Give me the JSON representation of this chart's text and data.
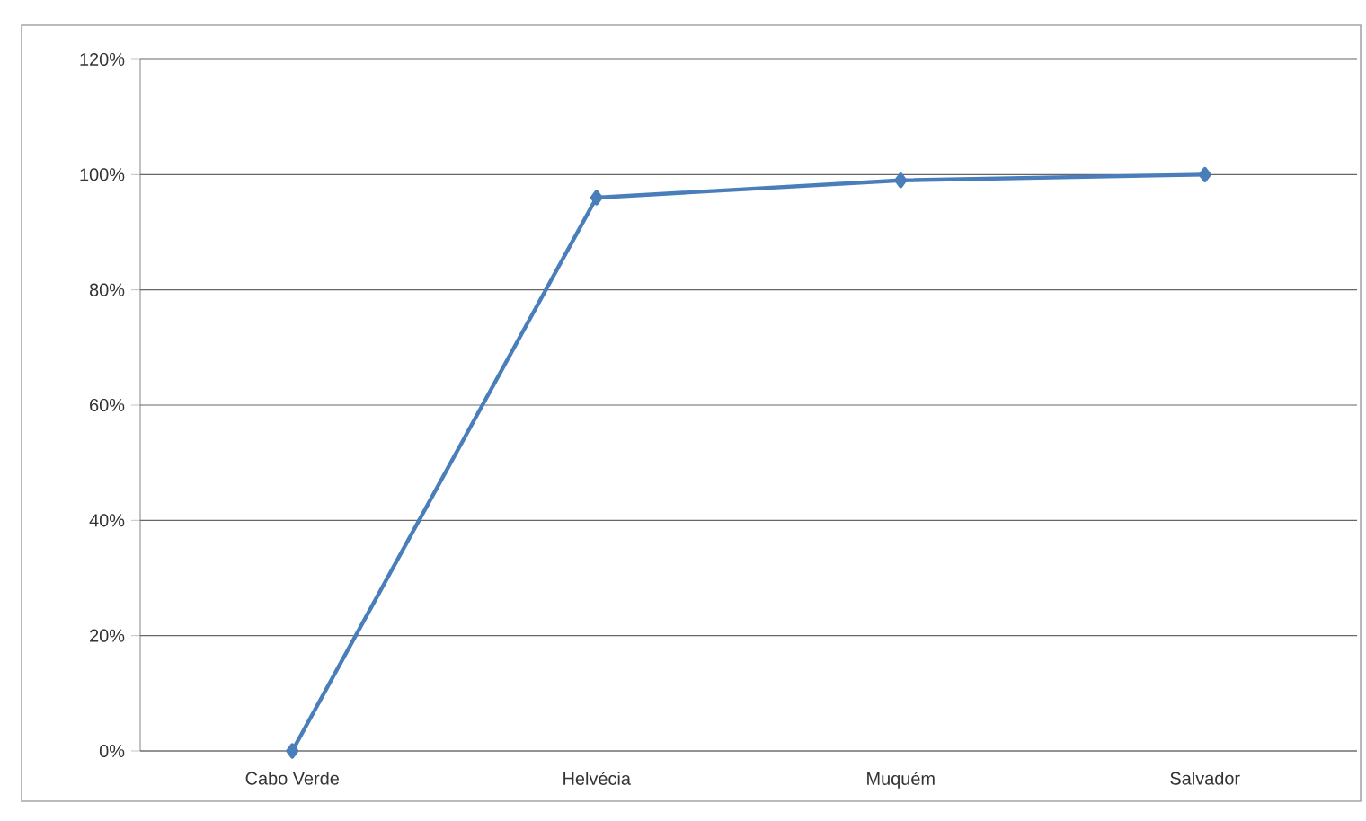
{
  "chart_data": {
    "type": "line",
    "categories": [
      "Cabo Verde",
      "Helvécia",
      "Muquém",
      "Salvador"
    ],
    "series": [
      {
        "color": "#4a7ebb",
        "values": [
          0,
          96,
          99,
          100
        ]
      }
    ],
    "ylim": [
      0,
      120
    ],
    "yticks": [
      {
        "value": 0,
        "label": "0%"
      },
      {
        "value": 20,
        "label": "20%"
      },
      {
        "value": 40,
        "label": "40%"
      },
      {
        "value": 60,
        "label": "60%"
      },
      {
        "value": 80,
        "label": "80%"
      },
      {
        "value": 100,
        "label": "100%"
      },
      {
        "value": 120,
        "label": "120%"
      }
    ],
    "grid": "y",
    "marker": "diamond",
    "line_style": "solid"
  }
}
